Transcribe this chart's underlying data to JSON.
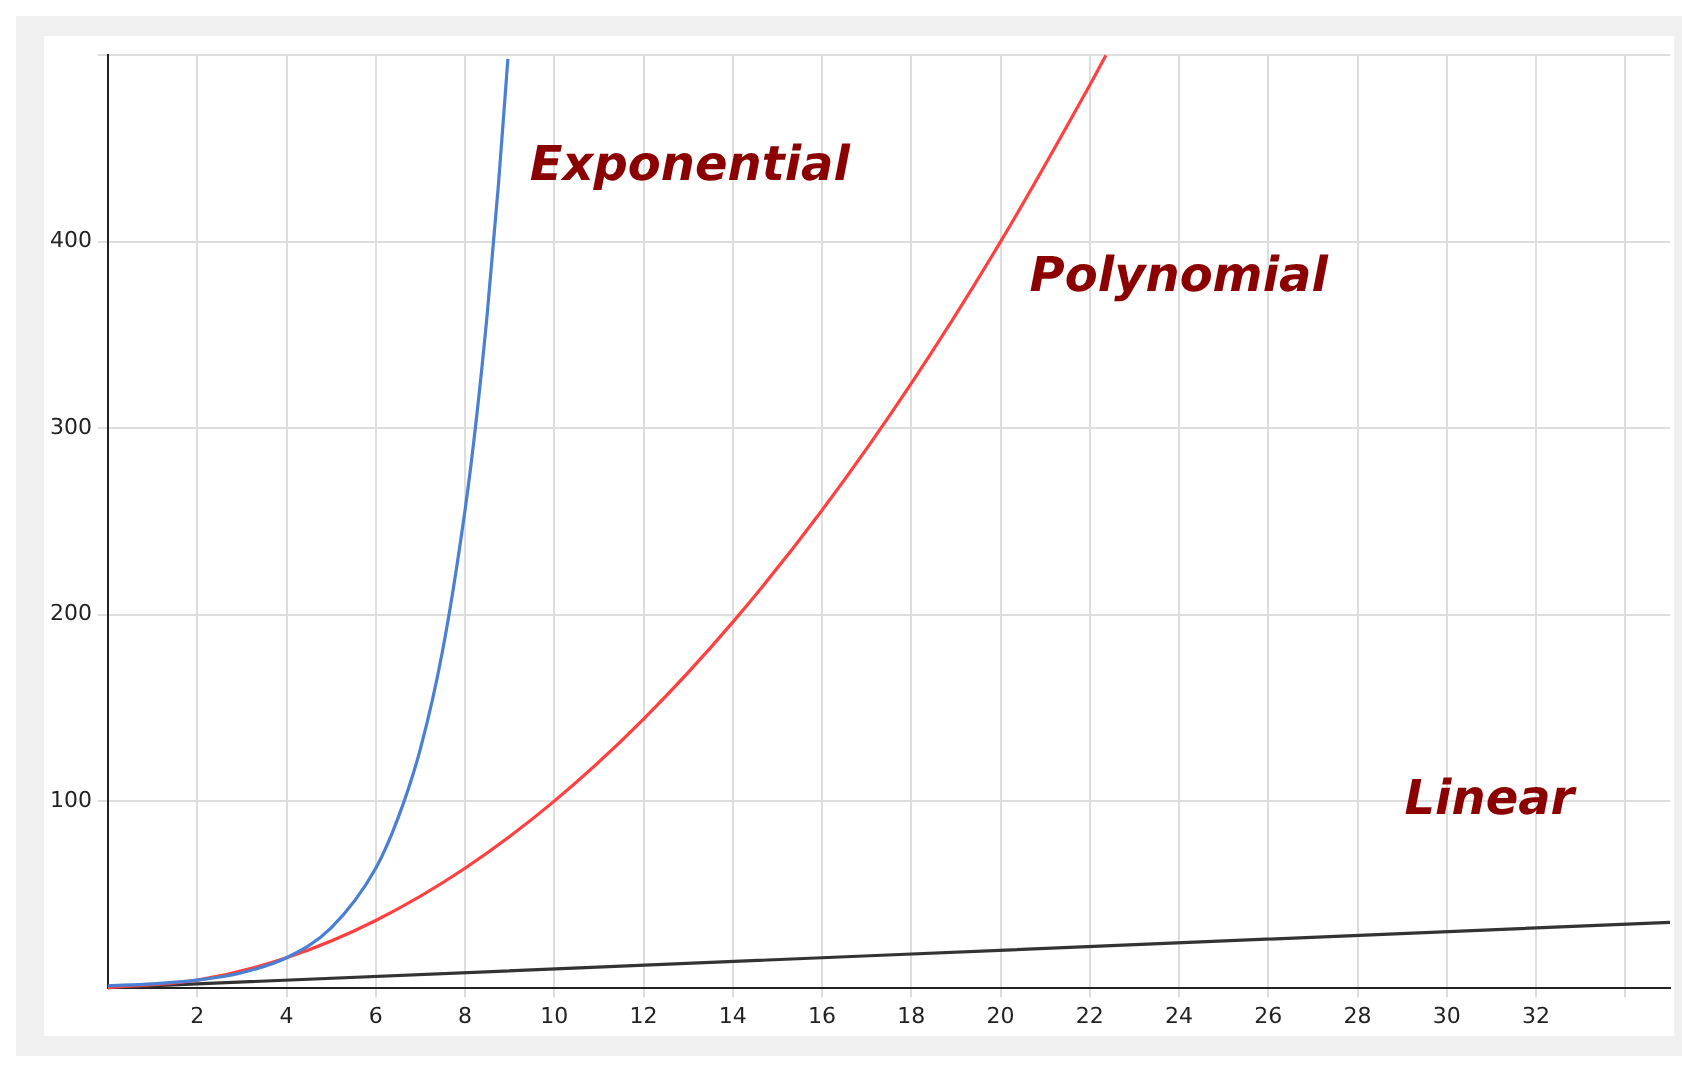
{
  "chart_data": {
    "type": "line",
    "x": [
      0,
      1,
      2,
      3,
      4,
      5,
      6,
      6.5,
      7,
      7.5,
      8,
      8.25,
      8.5,
      8.75,
      8.96
    ],
    "series": [
      {
        "name": "Exponential",
        "color": "#4a7fd4",
        "values": [
          1,
          2,
          4,
          8,
          16,
          32,
          64,
          91,
          128,
          181,
          256,
          304,
          362,
          431,
          498
        ]
      },
      {
        "name": "Polynomial",
        "color": "#ff4040",
        "x": [
          0,
          2,
          4,
          6,
          8,
          10,
          12,
          14,
          16,
          18,
          20,
          22,
          22.36
        ],
        "values": [
          0,
          4,
          16,
          36,
          64,
          100,
          144,
          196,
          256,
          324,
          400,
          484,
          500
        ]
      },
      {
        "name": "Linear",
        "color": "#333333",
        "x": [
          0,
          35
        ],
        "values": [
          0,
          35
        ]
      }
    ],
    "xlim": [
      0,
      35
    ],
    "ylim": [
      0,
      500
    ],
    "xticks": [
      2,
      4,
      6,
      8,
      10,
      12,
      14,
      16,
      18,
      20,
      22,
      24,
      26,
      28,
      30,
      32,
      {
        "value": 34,
        "label": null
      }
    ],
    "yticks": [
      100,
      200,
      300,
      400,
      {
        "value": 500,
        "label": null
      }
    ],
    "grid": true,
    "legend": false,
    "marker": "none",
    "line_style": "solid"
  }
}
